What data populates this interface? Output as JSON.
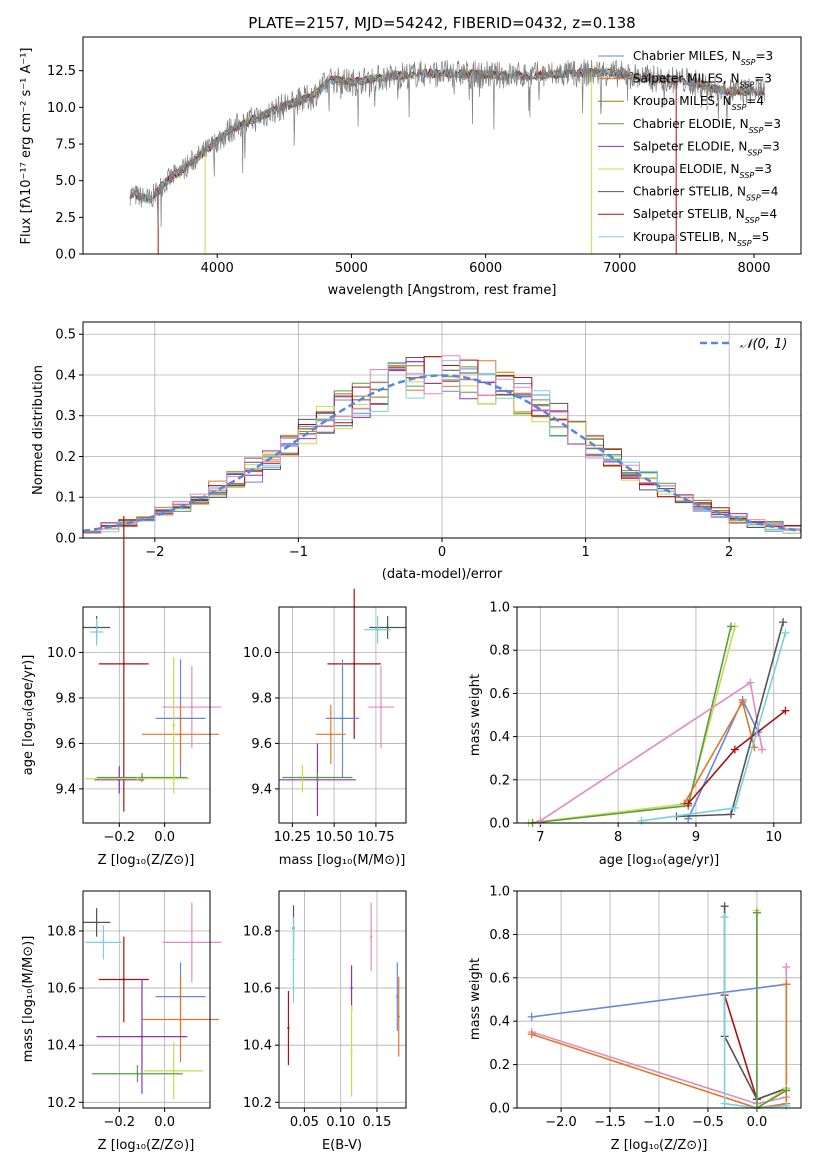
{
  "colors": {
    "chabrier_miles": "#6688dd",
    "salpeter_miles": "#e07828",
    "kroupa_miles": "#a07818",
    "chabrier_elodie": "#5a9a48",
    "salpeter_elodie": "#9030b8",
    "kroupa_elodie": "#c8dc4c",
    "chabrier_stelib": "#555555",
    "salpeter_stelib": "#aa1111",
    "kroupa_stelib": "#78d0e0",
    "pink": "#e48ac2",
    "gray_data": "#7f7f7f",
    "normal_curve": "#5588dd",
    "grid": "#b0b0b0"
  },
  "chart_data": [
    {
      "id": "spectrum",
      "type": "line",
      "title": "PLATE=2157, MJD=54242, FIBERID=0432, z=0.138",
      "xlabel": "wavelength [Angstrom, rest frame]",
      "ylabel": "Flux [fλ10⁻¹⁷ erg cm⁻² s⁻¹ A⁻¹]",
      "xlim": [
        3000,
        8350
      ],
      "ylim": [
        0,
        14.8
      ],
      "xticks": [
        "4000",
        "5000",
        "6000",
        "7000",
        "8000"
      ],
      "yticks": [
        "0.0",
        "2.5",
        "5.0",
        "7.5",
        "10.0",
        "12.5"
      ],
      "legend_position": "upper right",
      "spectrum_knots": [
        [
          3350,
          4.1
        ],
        [
          3500,
          3.7
        ],
        [
          3600,
          4.8
        ],
        [
          3800,
          6.2
        ],
        [
          3950,
          7.3
        ],
        [
          4100,
          8.5
        ],
        [
          4300,
          9.3
        ],
        [
          4500,
          10.1
        ],
        [
          4700,
          10.7
        ],
        [
          4850,
          11.9
        ],
        [
          5000,
          11.7
        ],
        [
          5200,
          12.0
        ],
        [
          5500,
          12.3
        ],
        [
          5800,
          12.3
        ],
        [
          6100,
          12.2
        ],
        [
          6400,
          12.2
        ],
        [
          6600,
          12.3
        ],
        [
          6900,
          12.4
        ],
        [
          7200,
          12.0
        ],
        [
          7500,
          11.8
        ],
        [
          7800,
          11.1
        ],
        [
          8080,
          11.1
        ]
      ],
      "series": [
        {
          "name": "Chabrier MILES, N_SSP=3",
          "color_key": "chabrier_miles"
        },
        {
          "name": "Salpeter MILES, N_SSP=3",
          "color_key": "salpeter_miles"
        },
        {
          "name": "Kroupa MILES, N_SSP=4",
          "color_key": "kroupa_miles"
        },
        {
          "name": "Chabrier ELODIE, N_SSP=3",
          "color_key": "chabrier_elodie"
        },
        {
          "name": "Salpeter ELODIE, N_SSP=3",
          "color_key": "salpeter_elodie"
        },
        {
          "name": "Kroupa ELODIE, N_SSP=3",
          "color_key": "kroupa_elodie"
        },
        {
          "name": "Chabrier STELIB, N_SSP=4",
          "color_key": "chabrier_stelib"
        },
        {
          "name": "Salpeter STELIB, N_SSP=4",
          "color_key": "salpeter_stelib"
        },
        {
          "name": "Kroupa STELIB, N_SSP=5",
          "color_key": "kroupa_stelib"
        }
      ]
    },
    {
      "id": "residuals",
      "type": "line",
      "xlabel": "(data-model)/error",
      "ylabel": "Normed distribution",
      "xlim": [
        -2.5,
        2.5
      ],
      "ylim": [
        0,
        0.53
      ],
      "xticks": [
        "−2",
        "−1",
        "0",
        "1",
        "2"
      ],
      "yticks": [
        "0.0",
        "0.1",
        "0.2",
        "0.3",
        "0.4",
        "0.5"
      ],
      "bin_width": 0.125,
      "legend_position": "upper right",
      "reference_curve": {
        "name": "𝒩(0, 1)",
        "mean": 0,
        "sigma": 1
      },
      "histogram_series": [
        "chabrier_miles",
        "salpeter_miles",
        "kroupa_miles",
        "chabrier_elodie",
        "salpeter_elodie",
        "kroupa_elodie",
        "chabrier_stelib",
        "salpeter_stelib",
        "kroupa_stelib",
        "pink"
      ]
    },
    {
      "id": "age_vs_Z",
      "type": "scatter",
      "xlabel": "Z [log₁₀(Z/Z⊙)]",
      "ylabel": "age  [log₁₀(age/yr)]",
      "xlim": [
        -0.36,
        0.2
      ],
      "ylim": [
        9.25,
        10.2
      ],
      "xticks": [
        "−0.2",
        "0.0"
      ],
      "yticks": [
        "9.4",
        "9.6",
        "9.8",
        "10.0"
      ],
      "points": [
        {
          "color_key": "chabrier_stelib",
          "x": -0.3,
          "y": 10.11,
          "xerr": 0.06,
          "yerr": 0.05
        },
        {
          "color_key": "kroupa_stelib",
          "x": -0.3,
          "y": 10.09,
          "xerr": 0.03,
          "yerr": 0.06
        },
        {
          "color_key": "salpeter_stelib",
          "x": -0.18,
          "y": 9.95,
          "xerr": 0.11,
          "yerr": 0.65
        },
        {
          "color_key": "pink",
          "x": 0.12,
          "y": 9.76,
          "xerr": 0.13,
          "yerr": 0.18
        },
        {
          "color_key": "chabrier_miles",
          "x": 0.07,
          "y": 9.71,
          "xerr": 0.11,
          "yerr": 0.26
        },
        {
          "color_key": "salpeter_miles",
          "x": 0.07,
          "y": 9.64,
          "xerr": 0.17,
          "yerr": 0.13
        },
        {
          "color_key": "salpeter_elodie",
          "x": -0.2,
          "y": 9.44,
          "xerr": 0.11,
          "yerr": 0.06
        },
        {
          "color_key": "chabrier_elodie",
          "x": -0.1,
          "y": 9.45,
          "xerr": 0.2,
          "yerr": 0.02
        },
        {
          "color_key": "kroupa_elodie",
          "x": -0.12,
          "y": 9.445,
          "xerr": 0.23,
          "yerr": 0.01
        },
        {
          "color_key": "kroupa_elodie",
          "x": 0.04,
          "y": 9.68,
          "xerr": 0.005,
          "yerr": 0.3
        }
      ]
    },
    {
      "id": "age_vs_mass",
      "type": "scatter",
      "xlabel": "mass [log₁₀(M/M⊙)]",
      "xlim": [
        10.17,
        10.93
      ],
      "ylim": [
        9.25,
        10.2
      ],
      "xticks": [
        "10.25",
        "10.50",
        "10.75"
      ],
      "yticks": [
        "9.4",
        "9.6",
        "9.8",
        "10.0"
      ],
      "points": [
        {
          "color_key": "chabrier_stelib",
          "x": 10.82,
          "y": 10.11,
          "xerr": 0.11,
          "yerr": 0.05
        },
        {
          "color_key": "kroupa_stelib",
          "x": 10.76,
          "y": 10.1,
          "xerr": 0.08,
          "yerr": 0.06
        },
        {
          "color_key": "salpeter_stelib",
          "x": 10.62,
          "y": 9.95,
          "xerr": 0.16,
          "yerr": 0.33
        },
        {
          "color_key": "pink",
          "x": 10.78,
          "y": 9.76,
          "xerr": 0.08,
          "yerr": 0.18
        },
        {
          "color_key": "chabrier_miles",
          "x": 10.55,
          "y": 9.71,
          "xerr": 0.1,
          "yerr": 0.26
        },
        {
          "color_key": "salpeter_miles",
          "x": 10.48,
          "y": 9.64,
          "xerr": 0.09,
          "yerr": 0.13
        },
        {
          "color_key": "salpeter_elodie",
          "x": 10.4,
          "y": 9.44,
          "xerr": 0.23,
          "yerr": 0.16
        },
        {
          "color_key": "chabrier_elodie",
          "x": 10.4,
          "y": 9.45,
          "xerr": 0.21,
          "yerr": 0.02
        },
        {
          "color_key": "kroupa_elodie",
          "x": 10.31,
          "y": 9.445,
          "xerr": 0.01,
          "yerr": 0.06
        }
      ]
    },
    {
      "id": "mass_weight_vs_age",
      "type": "line",
      "xlabel": "age  [log₁₀(age/yr)]",
      "ylabel": "mass weight",
      "xlim": [
        6.7,
        10.35
      ],
      "ylim": [
        0,
        1
      ],
      "xticks": [
        "7",
        "8",
        "9",
        "10"
      ],
      "yticks": [
        "0.0",
        "0.2",
        "0.4",
        "0.6",
        "0.8",
        "1.0"
      ],
      "series": [
        {
          "color_key": "kroupa_elodie",
          "x": [
            6.85,
            8.9,
            9.5
          ],
          "y": [
            0.0,
            0.09,
            0.91
          ]
        },
        {
          "color_key": "chabrier_elodie",
          "x": [
            6.9,
            8.9,
            9.45
          ],
          "y": [
            0.0,
            0.08,
            0.91
          ]
        },
        {
          "color_key": "pink",
          "x": [
            7.0,
            9.7,
            9.85
          ],
          "y": [
            0.01,
            0.65,
            0.34
          ]
        },
        {
          "color_key": "chabrier_miles",
          "x": [
            8.9,
            9.6,
            9.8
          ],
          "y": [
            0.02,
            0.57,
            0.42
          ]
        },
        {
          "color_key": "salpeter_miles",
          "x": [
            8.85,
            9.6,
            9.75
          ],
          "y": [
            0.09,
            0.56,
            0.35
          ]
        },
        {
          "color_key": "salpeter_stelib",
          "x": [
            8.9,
            9.5,
            10.15
          ],
          "y": [
            0.09,
            0.34,
            0.52
          ]
        },
        {
          "color_key": "chabrier_stelib",
          "x": [
            8.75,
            9.45,
            10.12
          ],
          "y": [
            0.03,
            0.04,
            0.93
          ]
        },
        {
          "color_key": "kroupa_stelib",
          "x": [
            8.3,
            9.5,
            10.15
          ],
          "y": [
            0.01,
            0.07,
            0.88
          ]
        }
      ]
    },
    {
      "id": "mass_vs_Z",
      "type": "scatter",
      "xlabel": "Z [log₁₀(Z/Z⊙)]",
      "ylabel": "mass [log₁₀(M/M⊙)]",
      "xlim": [
        -0.36,
        0.2
      ],
      "ylim": [
        10.18,
        10.94
      ],
      "xticks": [
        "−0.2",
        "0.0"
      ],
      "yticks": [
        "10.2",
        "10.4",
        "10.6",
        "10.8"
      ],
      "points": [
        {
          "color_key": "chabrier_stelib",
          "x": -0.3,
          "y": 10.83,
          "xerr": 0.06,
          "yerr": 0.05
        },
        {
          "color_key": "kroupa_stelib",
          "x": -0.27,
          "y": 10.76,
          "xerr": 0.08,
          "yerr": 0.06
        },
        {
          "color_key": "pink",
          "x": 0.12,
          "y": 10.76,
          "xerr": 0.13,
          "yerr": 0.14
        },
        {
          "color_key": "salpeter_stelib",
          "x": -0.18,
          "y": 10.63,
          "xerr": 0.11,
          "yerr": 0.15
        },
        {
          "color_key": "chabrier_miles",
          "x": 0.07,
          "y": 10.57,
          "xerr": 0.11,
          "yerr": 0.12
        },
        {
          "color_key": "salpeter_miles",
          "x": 0.07,
          "y": 10.49,
          "xerr": 0.17,
          "yerr": 0.15
        },
        {
          "color_key": "salpeter_elodie",
          "x": -0.1,
          "y": 10.43,
          "xerr": 0.2,
          "yerr": 0.2
        },
        {
          "color_key": "kroupa_elodie",
          "x": 0.04,
          "y": 10.31,
          "xerr": 0.13,
          "yerr": 0.1
        },
        {
          "color_key": "chabrier_elodie",
          "x": -0.12,
          "y": 10.3,
          "xerr": 0.2,
          "yerr": 0.03
        }
      ]
    },
    {
      "id": "mass_vs_ebv",
      "type": "scatter",
      "xlabel": "E(B-V)",
      "xlim": [
        0.015,
        0.19
      ],
      "ylim": [
        10.18,
        10.94
      ],
      "xticks": [
        "0.05",
        "0.10",
        "0.15"
      ],
      "yticks": [
        "10.2",
        "10.4",
        "10.6",
        "10.8"
      ],
      "points": [
        {
          "color_key": "chabrier_stelib",
          "x": 0.035,
          "y": 10.81,
          "xerr": 0,
          "yerr": 0.08
        },
        {
          "color_key": "kroupa_stelib",
          "x": 0.035,
          "y": 10.7,
          "xerr": 0,
          "yerr": 0.15
        },
        {
          "color_key": "salpeter_stelib",
          "x": 0.028,
          "y": 10.46,
          "xerr": 0,
          "yerr": 0.13
        },
        {
          "color_key": "salpeter_elodie",
          "x": 0.115,
          "y": 10.6,
          "xerr": 0,
          "yerr": 0.08
        },
        {
          "color_key": "kroupa_elodie",
          "x": 0.115,
          "y": 10.38,
          "xerr": 0,
          "yerr": 0.16
        },
        {
          "color_key": "pink",
          "x": 0.142,
          "y": 10.78,
          "xerr": 0,
          "yerr": 0.12
        },
        {
          "color_key": "chabrier_miles",
          "x": 0.178,
          "y": 10.57,
          "xerr": 0,
          "yerr": 0.12
        },
        {
          "color_key": "salpeter_miles",
          "x": 0.18,
          "y": 10.5,
          "xerr": 0,
          "yerr": 0.14
        }
      ]
    },
    {
      "id": "mass_weight_vs_Z",
      "type": "line",
      "xlabel": "Z [log₁₀(Z/Z⊙)]",
      "ylabel": "mass weight",
      "xlim": [
        -2.45,
        0.45
      ],
      "ylim": [
        0,
        1
      ],
      "xticks": [
        "−2.0",
        "−1.5",
        "−1.0",
        "−0.5",
        "0.0"
      ],
      "yticks": [
        "0.0",
        "0.2",
        "0.4",
        "0.6",
        "0.8",
        "1.0"
      ],
      "series": [
        {
          "color_key": "chabrier_miles",
          "x": [
            -2.3,
            0.3
          ],
          "y": [
            0.42,
            0.57
          ]
        },
        {
          "color_key": "pink",
          "x": [
            -2.3,
            0.0,
            0.3,
            0.3
          ],
          "y": [
            0.35,
            0.02,
            0.05,
            0.65
          ]
        },
        {
          "color_key": "salpeter_miles",
          "x": [
            -2.3,
            0.0,
            0.3,
            0.3
          ],
          "y": [
            0.34,
            0.0,
            0.02,
            0.57
          ]
        },
        {
          "color_key": "salpeter_stelib",
          "x": [
            -0.33,
            0.0,
            0.3
          ],
          "y": [
            0.52,
            0.04,
            0.09
          ]
        },
        {
          "color_key": "chabrier_stelib",
          "x": [
            -0.33,
            -0.33,
            0.0,
            0.3
          ],
          "y": [
            0.93,
            0.33,
            0.04,
            0.09
          ]
        },
        {
          "color_key": "kroupa_stelib",
          "x": [
            -0.33,
            -0.33,
            0.0,
            0.3
          ],
          "y": [
            0.88,
            0.02,
            0.0,
            0.01
          ]
        },
        {
          "color_key": "kroupa_elodie",
          "x": [
            0.0,
            0.0,
            0.3
          ],
          "y": [
            0.91,
            0.0,
            0.09
          ]
        },
        {
          "color_key": "chabrier_elodie",
          "x": [
            0.0,
            0.0,
            0.3
          ],
          "y": [
            0.9,
            0.0,
            0.08
          ]
        }
      ]
    }
  ]
}
